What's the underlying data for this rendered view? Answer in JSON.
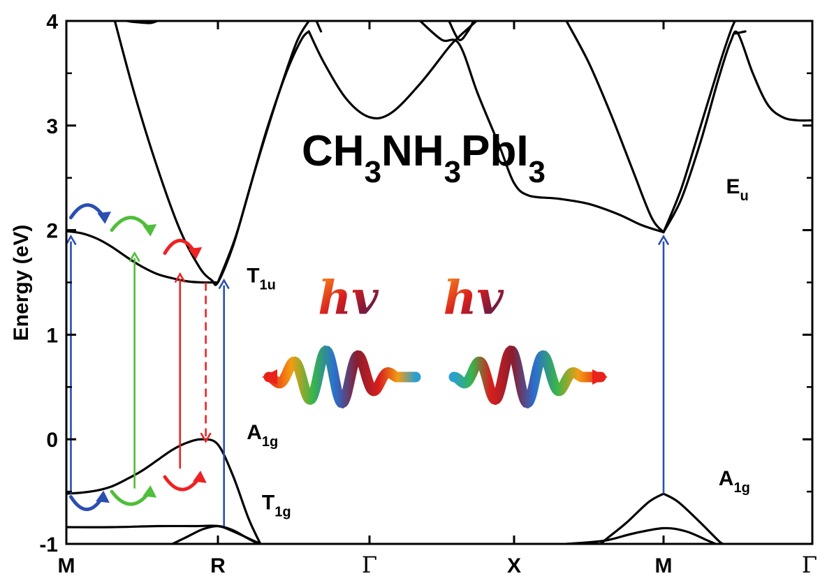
{
  "chart_data": {
    "type": "line",
    "title": "CH3NH3PbI3",
    "formula_parts": [
      "CH",
      "3",
      "NH",
      "3",
      "PbI",
      "3"
    ],
    "ylabel": "Energy (eV)",
    "xlabel": "",
    "ylim": [
      -1,
      4
    ],
    "yticks": [
      "-1",
      "0",
      "1",
      "2",
      "3",
      "4"
    ],
    "ytick_values": [
      -1,
      0,
      1,
      2,
      3,
      4
    ],
    "grid": false,
    "kpoints": [
      {
        "label": "M",
        "x": 0,
        "serif": false
      },
      {
        "label": "R",
        "x": 1,
        "serif": false
      },
      {
        "label": "Γ",
        "x": 2,
        "serif": true
      },
      {
        "label": "X",
        "x": 3,
        "serif": false
      },
      {
        "label": "M",
        "x": 4,
        "serif": false
      },
      {
        "label": "Γ",
        "x": 5,
        "serif": true
      }
    ],
    "band_labels": [
      {
        "main": "E",
        "sub": "u",
        "x": 4.42,
        "y": 2.35
      },
      {
        "main": "T",
        "sub": "1u",
        "x": 1.19,
        "y": 1.5
      },
      {
        "main": "A",
        "sub": "1g",
        "x": 1.19,
        "y": 0.0
      },
      {
        "main": "T",
        "sub": "1g",
        "x": 1.29,
        "y": -0.67
      },
      {
        "main": "A",
        "sub": "1g",
        "x": 4.37,
        "y": -0.44
      }
    ],
    "photon_labels": [
      {
        "text": "hv",
        "x": 1.66,
        "y": 1.2
      },
      {
        "text": "hv",
        "x": 2.51,
        "y": 1.2
      }
    ],
    "series": [
      {
        "values": [
          [
            0,
            1.99
          ],
          [
            0.1,
            1.97
          ],
          [
            0.2,
            1.92
          ],
          [
            0.3,
            1.84
          ],
          [
            0.4,
            1.74
          ],
          [
            0.5,
            1.65
          ],
          [
            0.6,
            1.58
          ],
          [
            0.7,
            1.54
          ],
          [
            0.8,
            1.51
          ],
          [
            0.9,
            1.5
          ],
          [
            1.0,
            1.5
          ]
        ]
      },
      {
        "values": [
          [
            0,
            -0.52
          ],
          [
            0.1,
            -0.51
          ],
          [
            0.2,
            -0.49
          ],
          [
            0.3,
            -0.45
          ],
          [
            0.4,
            -0.38
          ],
          [
            0.5,
            -0.3
          ],
          [
            0.6,
            -0.2
          ],
          [
            0.7,
            -0.1
          ],
          [
            0.8,
            -0.03
          ],
          [
            0.9,
            0.0
          ],
          [
            1.0,
            -0.05
          ],
          [
            1.1,
            -0.35
          ],
          [
            1.2,
            -0.75
          ],
          [
            1.28,
            -1.0
          ]
        ]
      },
      {
        "values": [
          [
            0,
            -0.84
          ],
          [
            0.3,
            -0.84
          ],
          [
            0.6,
            -0.83
          ],
          [
            0.85,
            -0.83
          ],
          [
            1.0,
            -0.83
          ],
          [
            1.1,
            -0.88
          ],
          [
            1.25,
            -0.98
          ],
          [
            1.28,
            -1.0
          ]
        ]
      },
      {
        "values": [
          [
            0.7,
            -1.0
          ],
          [
            0.8,
            -0.93
          ],
          [
            0.9,
            -0.86
          ],
          [
            1.0,
            -0.83
          ],
          [
            1.1,
            -0.87
          ],
          [
            1.2,
            -0.95
          ],
          [
            1.27,
            -1.0
          ]
        ]
      },
      {
        "values": [
          [
            0.32,
            4.0
          ],
          [
            0.45,
            3.3
          ],
          [
            0.6,
            2.6
          ],
          [
            0.75,
            2.0
          ],
          [
            0.88,
            1.64
          ],
          [
            0.96,
            1.52
          ],
          [
            1.0,
            1.5
          ],
          [
            1.1,
            1.85
          ],
          [
            1.2,
            2.35
          ],
          [
            1.32,
            2.95
          ],
          [
            1.45,
            3.5
          ],
          [
            1.55,
            3.82
          ],
          [
            1.6,
            3.9
          ]
        ]
      },
      {
        "values": [
          [
            1.0,
            1.5
          ],
          [
            1.12,
            1.95
          ],
          [
            1.25,
            2.6
          ],
          [
            1.4,
            3.3
          ],
          [
            1.52,
            3.8
          ],
          [
            1.6,
            4.0
          ]
        ]
      },
      {
        "values": [
          [
            0.4,
            4.0
          ],
          [
            0.45,
            3.99
          ],
          [
            0.55,
            3.98
          ],
          [
            0.6,
            4.0
          ]
        ]
      },
      {
        "values": [
          [
            1.6,
            3.9
          ],
          [
            1.7,
            3.6
          ],
          [
            1.85,
            3.25
          ],
          [
            2.0,
            3.08
          ],
          [
            2.15,
            3.12
          ],
          [
            2.35,
            3.4
          ],
          [
            2.55,
            3.75
          ],
          [
            2.62,
            3.85
          ],
          [
            2.7,
            3.95
          ],
          [
            2.74,
            4.0
          ]
        ]
      },
      {
        "values": [
          [
            1.65,
            4.0
          ],
          [
            1.68,
            3.9
          ]
        ]
      },
      {
        "values": [
          [
            2.55,
            4.0
          ],
          [
            2.62,
            3.82
          ],
          [
            2.68,
            3.9
          ],
          [
            2.72,
            4.0
          ]
        ]
      },
      {
        "values": [
          [
            2.35,
            4.0
          ],
          [
            2.5,
            3.82
          ],
          [
            2.62,
            3.78
          ],
          [
            2.75,
            3.3
          ],
          [
            2.9,
            2.8
          ],
          [
            3.0,
            2.45
          ],
          [
            3.1,
            2.33
          ],
          [
            3.3,
            2.3
          ],
          [
            3.5,
            2.25
          ],
          [
            3.7,
            2.15
          ],
          [
            3.85,
            2.05
          ],
          [
            4.0,
            1.98
          ]
        ]
      },
      {
        "values": [
          [
            3.35,
            4.0
          ],
          [
            3.5,
            3.6
          ],
          [
            3.65,
            3.1
          ],
          [
            3.8,
            2.55
          ],
          [
            3.92,
            2.12
          ],
          [
            4.0,
            1.98
          ]
        ]
      },
      {
        "values": [
          [
            4.0,
            1.98
          ],
          [
            4.12,
            2.3
          ],
          [
            4.25,
            2.85
          ],
          [
            4.37,
            3.45
          ],
          [
            4.45,
            3.8
          ],
          [
            4.5,
            3.88
          ],
          [
            4.6,
            3.5
          ],
          [
            4.7,
            3.2
          ],
          [
            4.8,
            3.08
          ],
          [
            4.9,
            3.05
          ],
          [
            5.0,
            3.05
          ]
        ]
      },
      {
        "values": [
          [
            4.0,
            1.98
          ],
          [
            4.12,
            2.4
          ],
          [
            4.25,
            3.0
          ],
          [
            4.38,
            3.6
          ],
          [
            4.45,
            3.9
          ],
          [
            4.48,
            4.0
          ]
        ]
      },
      {
        "values": [
          [
            4.48,
            3.88
          ],
          [
            4.55,
            3.9
          ]
        ]
      },
      {
        "values": [
          [
            4.0,
            -0.52
          ],
          [
            3.9,
            -0.6
          ],
          [
            3.75,
            -0.8
          ],
          [
            3.62,
            -0.95
          ],
          [
            3.58,
            -1.0
          ]
        ]
      },
      {
        "values": [
          [
            4.0,
            -0.52
          ],
          [
            4.1,
            -0.6
          ],
          [
            4.25,
            -0.8
          ],
          [
            4.37,
            -0.97
          ],
          [
            4.4,
            -1.0
          ]
        ]
      },
      {
        "values": [
          [
            3.35,
            -1.0
          ],
          [
            3.6,
            -0.97
          ],
          [
            3.8,
            -0.9
          ],
          [
            4.0,
            -0.85
          ],
          [
            4.15,
            -0.88
          ],
          [
            4.3,
            -0.97
          ],
          [
            4.35,
            -1.0
          ]
        ]
      }
    ],
    "transitions": [
      {
        "x": 0.03,
        "y0": -0.52,
        "y1": 1.94,
        "color": "#2a4fb0",
        "dashed": false
      },
      {
        "x": 0.45,
        "y0": -0.47,
        "y1": 1.78,
        "color": "#4fbe3a",
        "dashed": false
      },
      {
        "x": 0.75,
        "y0": -0.28,
        "y1": 1.58,
        "color": "#ee2222",
        "dashed": false
      },
      {
        "x": 0.92,
        "y0": 1.5,
        "y1": -0.02,
        "color": "#ee2222",
        "dashed": true
      },
      {
        "x": 1.04,
        "y0": -0.83,
        "y1": 1.52,
        "color": "#2a4fb0",
        "dashed": false
      },
      {
        "x": 4.0,
        "y0": -0.52,
        "y1": 1.94,
        "color": "#2a4fb0",
        "dashed": false
      }
    ],
    "relaxation_arrows": [
      {
        "x0": 0.03,
        "x1": 0.25,
        "y": 2.12,
        "dir": "over",
        "color": "#2a4fb0"
      },
      {
        "x0": 0.3,
        "x1": 0.55,
        "y": 2.0,
        "dir": "over",
        "color": "#4fbe3a"
      },
      {
        "x0": 0.65,
        "x1": 0.85,
        "y": 1.78,
        "dir": "over",
        "color": "#ee2222"
      },
      {
        "x0": 0.03,
        "x1": 0.24,
        "y": -0.55,
        "dir": "under",
        "color": "#2a4fb0"
      },
      {
        "x0": 0.3,
        "x1": 0.55,
        "y": -0.5,
        "dir": "under",
        "color": "#4fbe3a"
      },
      {
        "x0": 0.65,
        "x1": 0.88,
        "y": -0.36,
        "dir": "under",
        "color": "#ee2222"
      }
    ],
    "colors": {
      "blue": "#2a4fb0",
      "green": "#4fbe3a",
      "red": "#ee2222",
      "dark_red": "#9b1b1b",
      "orange": "#f39c12"
    }
  }
}
